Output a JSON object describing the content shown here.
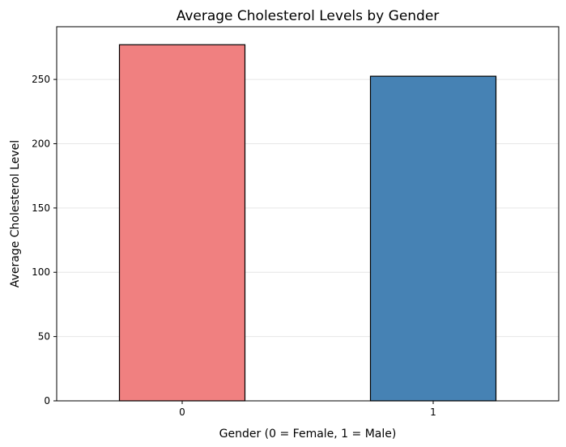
{
  "chart_data": {
    "type": "bar",
    "title": "Average Cholesterol Levels by Gender",
    "xlabel": "Gender (0 = Female, 1 = Male)",
    "ylabel": "Average Cholesterol Level",
    "categories": [
      "0",
      "1"
    ],
    "values": [
      277,
      252.5
    ],
    "bar_colors": [
      "#f08080",
      "#4682b4"
    ],
    "edge_color": "#000000",
    "ylim": [
      0,
      291
    ],
    "yticks": [
      0,
      50,
      100,
      150,
      200,
      250
    ],
    "grid": "y-axis, light"
  }
}
